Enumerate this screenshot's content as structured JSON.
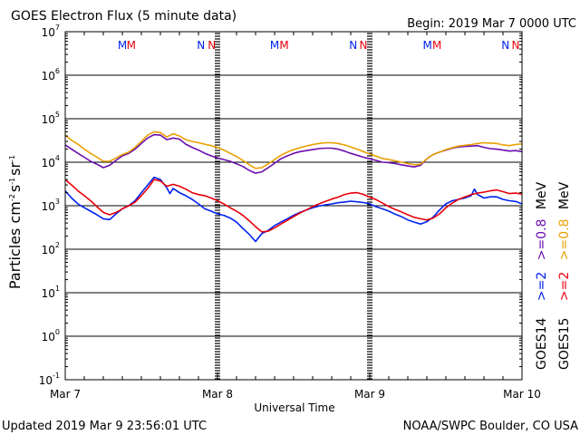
{
  "header": {
    "title": "GOES Electron Flux (5 minute data)",
    "begin": "Begin: 2019 Mar 7 0000 UTC"
  },
  "footer": {
    "updated": "Updated 2019 Mar  9 23:56:01 UTC",
    "credit": "NOAA/SWPC Boulder, CO USA"
  },
  "colors": {
    "goes14_2mev": "#0022ee",
    "goes15_2mev": "#e8000b",
    "goes14_08mev": "#6a0dad",
    "goes15_08mev": "#e8a000",
    "threshold": "#000000"
  },
  "chart_data": {
    "type": "line",
    "title": "GOES Electron Flux (5 minute data)",
    "xlabel": "Universal Time",
    "ylabel": "Particles cm-2 s-1 sr-1",
    "ylabel_parts": [
      "Particles cm",
      "-2",
      "s",
      "-1",
      "sr",
      "-1"
    ],
    "yscale": "log",
    "ylim": [
      0.1,
      10000000
    ],
    "xlim": [
      0,
      72
    ],
    "x_unit": "hours since 2019 Mar 7 0000 UTC",
    "x_ticks": [
      {
        "x": 0,
        "label": "Mar 7"
      },
      {
        "x": 24,
        "label": "Mar 8"
      },
      {
        "x": 48,
        "label": "Mar 9"
      },
      {
        "x": 72,
        "label": "Mar 10"
      }
    ],
    "y_ticks": [
      {
        "value": 10000000,
        "base": "10",
        "exp": "7"
      },
      {
        "value": 1000000,
        "base": "10",
        "exp": "6"
      },
      {
        "value": 100000,
        "base": "10",
        "exp": "5"
      },
      {
        "value": 10000,
        "base": "10",
        "exp": "4"
      },
      {
        "value": 1000,
        "base": "10",
        "exp": "3"
      },
      {
        "value": 100,
        "base": "10",
        "exp": "2"
      },
      {
        "value": 10,
        "base": "10",
        "exp": "1"
      },
      {
        "value": 1,
        "base": "10",
        "exp": "0"
      },
      {
        "value": 0.1,
        "base": "10",
        "exp": "-1"
      }
    ],
    "threshold": 1000,
    "markers": [
      {
        "x": 9.0,
        "label": "M",
        "color": "#0022ee"
      },
      {
        "x": 10.4,
        "label": "M",
        "color": "#e8000b"
      },
      {
        "x": 21.4,
        "label": "N",
        "color": "#0022ee"
      },
      {
        "x": 23.1,
        "label": "N",
        "color": "#e8000b"
      },
      {
        "x": 33.0,
        "label": "M",
        "color": "#0022ee"
      },
      {
        "x": 34.5,
        "label": "M",
        "color": "#e8000b"
      },
      {
        "x": 45.4,
        "label": "N",
        "color": "#0022ee"
      },
      {
        "x": 47.0,
        "label": "N",
        "color": "#e8000b"
      },
      {
        "x": 57.1,
        "label": "M",
        "color": "#0022ee"
      },
      {
        "x": 58.6,
        "label": "M",
        "color": "#e8000b"
      },
      {
        "x": 69.4,
        "label": "N",
        "color": "#0022ee"
      },
      {
        "x": 71.0,
        "label": "N",
        "color": "#e8000b"
      }
    ],
    "legend": {
      "placement": "right",
      "groups": [
        {
          "label": "GOES14",
          "color": "#000000",
          "items": [
            {
              "label": ">=2",
              "color": "#0022ee"
            },
            {
              "label": ">=0.8",
              "color": "#6a0dad"
            }
          ]
        },
        {
          "label": "GOES15",
          "color": "#000000",
          "items": [
            {
              "label": ">=2",
              "color": "#e8000b"
            },
            {
              "label": ">=0.8",
              "color": "#e8a000"
            }
          ]
        }
      ],
      "unit": "MeV"
    },
    "series": [
      {
        "name": ">=2",
        "color": "#0022ee",
        "x": [
          0,
          1,
          2,
          3,
          4,
          5,
          6,
          7,
          8,
          9,
          10,
          11,
          12,
          13,
          14,
          15,
          16,
          16.5,
          17,
          18,
          19,
          20,
          21,
          22,
          23,
          24,
          25,
          26,
          27,
          28,
          29,
          30,
          31,
          32,
          33,
          34,
          35,
          36,
          37,
          38,
          39,
          40,
          41,
          42,
          43,
          44,
          45,
          46,
          47,
          48,
          49,
          50,
          51,
          52,
          53,
          54,
          55,
          56,
          57,
          58,
          59,
          60,
          61,
          62,
          63,
          64,
          64.5,
          65,
          66,
          67,
          68,
          69,
          70,
          71,
          72
        ],
        "values": [
          2200,
          1500,
          1100,
          900,
          750,
          620,
          500,
          480,
          650,
          850,
          1000,
          1300,
          2000,
          3000,
          4500,
          4000,
          2600,
          1900,
          2500,
          2000,
          1700,
          1400,
          1100,
          850,
          750,
          650,
          600,
          520,
          420,
          300,
          220,
          150,
          230,
          270,
          350,
          420,
          500,
          600,
          700,
          800,
          900,
          980,
          1050,
          1100,
          1170,
          1220,
          1270,
          1230,
          1180,
          1100,
          950,
          850,
          750,
          640,
          560,
          470,
          420,
          380,
          430,
          550,
          800,
          1100,
          1300,
          1400,
          1500,
          1700,
          2400,
          1800,
          1500,
          1600,
          1600,
          1400,
          1300,
          1250,
          1100
        ]
      },
      {
        "name": ">=2",
        "color": "#e8000b",
        "x": [
          0,
          1,
          2,
          3,
          4,
          5,
          6,
          7,
          8,
          9,
          10,
          11,
          12,
          13,
          14,
          15,
          16,
          17,
          18,
          19,
          20,
          21,
          22,
          23,
          24,
          25,
          26,
          27,
          28,
          29,
          30,
          31,
          32,
          33,
          34,
          35,
          36,
          37,
          38,
          39,
          40,
          41,
          42,
          43,
          44,
          45,
          46,
          47,
          48,
          49,
          50,
          51,
          52,
          53,
          54,
          55,
          56,
          57,
          58,
          59,
          60,
          61,
          62,
          63,
          64,
          65,
          66,
          67,
          68,
          69,
          70,
          71,
          72
        ],
        "values": [
          4000,
          3000,
          2200,
          1700,
          1300,
          950,
          700,
          620,
          700,
          850,
          1000,
          1200,
          1700,
          2500,
          4000,
          3700,
          2800,
          3100,
          2800,
          2400,
          2000,
          1800,
          1700,
          1500,
          1300,
          1100,
          900,
          750,
          600,
          450,
          330,
          250,
          260,
          310,
          380,
          460,
          560,
          680,
          800,
          960,
          1100,
          1250,
          1420,
          1580,
          1800,
          1950,
          2000,
          1820,
          1580,
          1380,
          1150,
          960,
          820,
          720,
          620,
          540,
          500,
          470,
          520,
          650,
          900,
          1150,
          1400,
          1600,
          1800,
          1950,
          2050,
          2200,
          2300,
          2100,
          1900,
          1950,
          1850
        ]
      },
      {
        "name": ">=0.8",
        "color": "#6a0dad",
        "x": [
          0,
          1,
          2,
          3,
          4,
          5,
          6,
          7,
          8,
          9,
          10,
          11,
          12,
          13,
          14,
          15,
          16,
          17,
          18,
          19,
          20,
          21,
          22,
          23,
          24,
          25,
          26,
          27,
          28,
          29,
          30,
          31,
          32,
          33,
          34,
          35,
          36,
          37,
          38,
          39,
          40,
          41,
          42,
          43,
          44,
          45,
          46,
          47,
          48,
          49,
          50,
          51,
          52,
          53,
          54,
          55,
          56,
          57,
          58,
          59,
          60,
          61,
          62,
          63,
          64,
          65,
          66,
          67,
          68,
          69,
          70,
          71,
          72
        ],
        "values": [
          25000,
          20000,
          16000,
          13000,
          10500,
          9000,
          7500,
          8500,
          11000,
          14000,
          16000,
          20000,
          27000,
          36000,
          43000,
          42000,
          33000,
          36000,
          34000,
          26000,
          22000,
          19000,
          16000,
          14000,
          12500,
          11500,
          10500,
          9200,
          8000,
          6500,
          5600,
          6000,
          7500,
          9500,
          12000,
          14000,
          16000,
          17500,
          18500,
          19500,
          20500,
          21000,
          21000,
          20000,
          18000,
          16000,
          14500,
          13000,
          12000,
          11000,
          10000,
          9800,
          9300,
          8700,
          8200,
          7800,
          8500,
          12000,
          15000,
          17000,
          19000,
          21000,
          22500,
          23000,
          23500,
          24000,
          22000,
          20500,
          20000,
          19000,
          18000,
          18500,
          17500
        ]
      },
      {
        "name": ">=0.8",
        "color": "#e8a000",
        "x": [
          0,
          1,
          2,
          3,
          4,
          5,
          6,
          7,
          8,
          9,
          10,
          11,
          12,
          13,
          14,
          15,
          16,
          17,
          18,
          19,
          20,
          21,
          22,
          23,
          24,
          25,
          26,
          27,
          28,
          29,
          30,
          31,
          32,
          33,
          34,
          35,
          36,
          37,
          38,
          39,
          40,
          41,
          42,
          43,
          44,
          45,
          46,
          47,
          48,
          49,
          50,
          51,
          52,
          53,
          54,
          55,
          56,
          57,
          58,
          59,
          60,
          61,
          62,
          63,
          64,
          65,
          66,
          67,
          68,
          69,
          70,
          71,
          72
        ],
        "values": [
          42000,
          32000,
          26000,
          20000,
          16000,
          13000,
          10500,
          10500,
          12500,
          15000,
          17000,
          22000,
          30000,
          42000,
          50000,
          48000,
          38000,
          45000,
          40000,
          33000,
          30000,
          28000,
          26000,
          24000,
          22000,
          19000,
          16000,
          13500,
          11000,
          8800,
          7200,
          7500,
          9200,
          11500,
          14500,
          17000,
          19500,
          21500,
          23500,
          25500,
          27000,
          28000,
          28000,
          27000,
          25000,
          22500,
          20000,
          17500,
          15500,
          13800,
          12200,
          11500,
          10800,
          10000,
          9300,
          8800,
          9000,
          12000,
          15000,
          17000,
          19500,
          21500,
          23500,
          24500,
          25500,
          27000,
          28000,
          27500,
          27000,
          25000,
          24000,
          25500,
          26500
        ]
      }
    ]
  }
}
